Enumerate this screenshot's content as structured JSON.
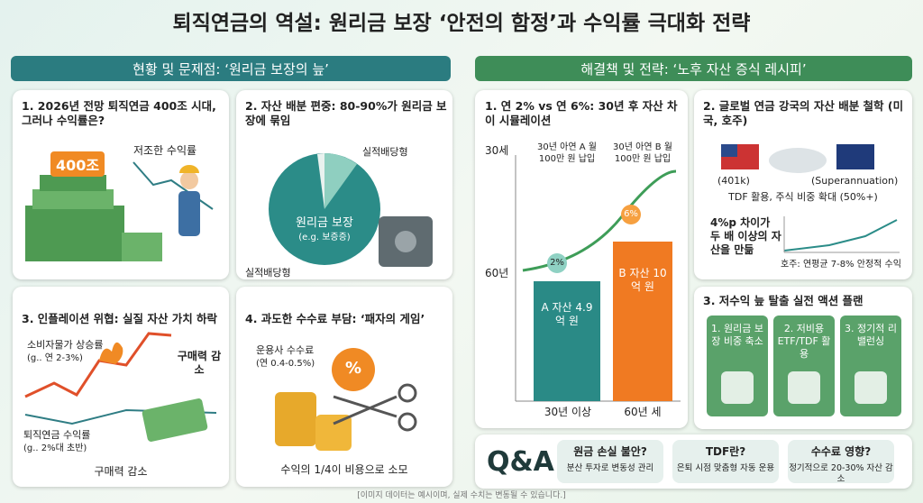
{
  "title": "퇴직연금의 역설: 원리금 보장 ‘안전의 함정’과 수익률 극대화 전략",
  "left_header": "현황 및 문제점: ‘원리금 보장의 늪’",
  "right_header": "해결책 및 전략: ‘노후 자산 증식 레시피’",
  "panel1": {
    "title": "1. 2026년 전망 퇴직연금 400조 시대, 그러나 수익률은?",
    "badge": "400조",
    "note": "저조한 수익률"
  },
  "panel2": {
    "title": "2. 자산 배분 편중: 80-90%가 원리금 보장에 묶임",
    "top_label": "실적배당형",
    "main_label": "원리금 보장",
    "main_sub": "(e.g. 보증증)",
    "bottom_label": "실적배당형"
  },
  "panel3": {
    "title": "3. 인플레이션 위협: 실질 자산 가치 하락",
    "cpi": "소비자물가 상승률",
    "cpi_sub": "(g.. 연 2-3%)",
    "drop": "구매력 감소",
    "pension": "퇴직연금 수익률",
    "pension_sub": "(g.. 2%대 초반)",
    "caption": "구매력 감소"
  },
  "panel4": {
    "title": "4. 과도한 수수료 부담: ‘패자의 게임’",
    "fee": "운용사 수수료",
    "fee_sub": "(연 0.4-0.5%)",
    "percent": "%",
    "caption": "수익의 1/4이 비용으로 소모"
  },
  "panel5": {
    "title": "1. 연 2% vs 연 6%: 30년 후 자산 차이 시뮬레이션",
    "y_top": "30세",
    "y_mid": "60년",
    "note_a": "30년 아연 A 월 100만 원 납입",
    "note_b": "30년 아연 B 월 100만 원 납입",
    "rate_a": "2%",
    "rate_b": "6%",
    "bar_a": "A 자산 4.9억 원",
    "bar_b": "B 자산 10억 원",
    "x_a": "30년 이상",
    "x_b": "60년 세"
  },
  "panel6": {
    "title": "2. 글로벌 연금 강국의 자산 배분 철학 (미국, 호주)",
    "us": "(401k)",
    "au": "(Superannuation)",
    "tdf": "TDF 활용, 주식 비중 확대 (50%+)",
    "gap": "4%p 차이가 두 배 이상의 자산을 만듦",
    "au_note": "호주: 연평균 7-8% 안정적 수익"
  },
  "panel7": {
    "title": "3. 저수익 늪 탈출 실전 액션 플랜",
    "items": [
      "1. 원리금 보장 비중 축소",
      "2. 저비용 ETF/TDF 활용",
      "3. 정기적 리밸런싱"
    ]
  },
  "qa": {
    "label": "Q&A",
    "items": [
      {
        "q": "원금 손실 불안?",
        "a": "분산 투자로 변동성 관리"
      },
      {
        "q": "TDF란?",
        "a": "은퇴 시점 맞춤형 자동 운용"
      },
      {
        "q": "수수료 영향?",
        "a": "정기적으로 20-30% 자산 감소"
      }
    ]
  },
  "footer": "[이미지 데이터는 예시이며, 실제 수치는 변동될 수 있습니다.]"
}
